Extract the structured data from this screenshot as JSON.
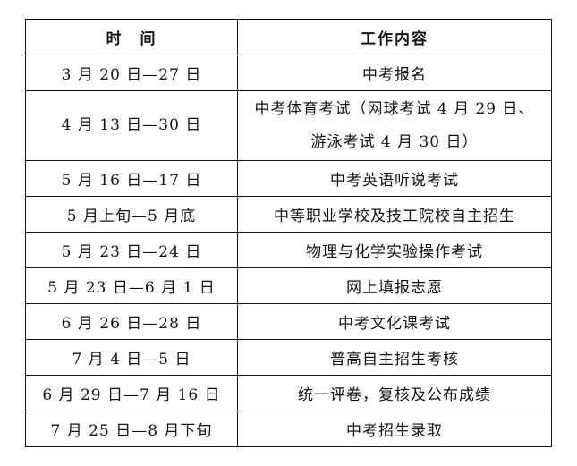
{
  "headers": [
    "时　间",
    "工作内容"
  ],
  "rows": [
    {
      "time": "3 月 20 日—27 日",
      "content": "中考报名"
    },
    {
      "time": "4 月 13 日—30 日",
      "content": "中考体育考试（网球考试 4 月 29 日、",
      "content2": "游泳考试 4 月 30 日）"
    },
    {
      "time": "5 月 16 日—17 日",
      "content": "中考英语听说考试"
    },
    {
      "time": "5 月上旬—5 月底",
      "content": "中等职业学校及技工院校自主招生"
    },
    {
      "time": "5 月 23 日—24 日",
      "content": "物理与化学实验操作考试"
    },
    {
      "time": "5 月 23 日—6 月 1 日",
      "content": "网上填报志愿"
    },
    {
      "time": "6 月 26 日—28 日",
      "content": "中考文化课考试"
    },
    {
      "time": "7 月 4 日—5 日",
      "content": "普高自主招生考核"
    },
    {
      "time": "6 月 29 日—7 月 16 日",
      "content": "统一评卷，复核及公布成绩"
    },
    {
      "time": "7 月 25 日—8 月下旬",
      "content": "中考招生录取"
    }
  ]
}
